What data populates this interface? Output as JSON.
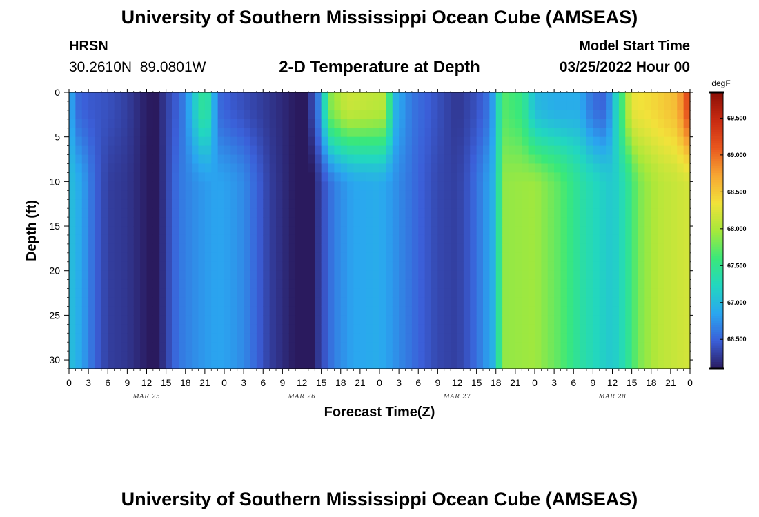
{
  "header": {
    "title": "University of Southern Mississippi Ocean Cube (AMSEAS)",
    "station": "HRSN",
    "coords": "30.2610N  89.0801W",
    "subtitle": "2-D Temperature at Depth",
    "start_label": "Model Start Time",
    "start_value": "03/25/2022 Hour 00"
  },
  "footer": {
    "title": "University of Southern Mississippi Ocean Cube (AMSEAS)"
  },
  "chart_data": {
    "type": "heatmap",
    "title": "2-D Temperature at Depth",
    "xlabel": "Forecast Time(Z)",
    "ylabel": "Depth (ft)",
    "x_tick_labels": [
      "0",
      "3",
      "6",
      "9",
      "12",
      "15",
      "18",
      "21",
      "0",
      "3",
      "6",
      "9",
      "12",
      "15",
      "18",
      "21",
      "0",
      "3",
      "6",
      "9",
      "12",
      "15",
      "18",
      "21",
      "0",
      "3",
      "6",
      "9",
      "12",
      "15",
      "18",
      "21",
      "0"
    ],
    "date_labels": [
      {
        "label": "MAR 25",
        "hour": 12
      },
      {
        "label": "MAR 26",
        "hour": 36
      },
      {
        "label": "MAR 27",
        "hour": 60
      },
      {
        "label": "MAR 28",
        "hour": 84
      }
    ],
    "xlim_hours": [
      0,
      96
    ],
    "y_tick_labels": [
      "0",
      "5",
      "10",
      "15",
      "20",
      "25",
      "30"
    ],
    "ylim_ft": [
      0,
      31
    ],
    "colorbar": {
      "unit": "degF",
      "tick_labels": [
        "66.500",
        "67.000",
        "67.500",
        "68.000",
        "68.500",
        "69.000",
        "69.500"
      ],
      "range": [
        66.1,
        69.85
      ],
      "colors": [
        "#2a1a5e",
        "#3b5fd8",
        "#2aa6f0",
        "#22d7c0",
        "#3ae87a",
        "#a8e83a",
        "#f2e23a",
        "#f7a533",
        "#e8561e",
        "#c82a12",
        "#8a0e05"
      ]
    },
    "surface_temp_degF": [
      {
        "hour": 0,
        "temp": 67.05
      },
      {
        "hour": 1,
        "temp": 66.55
      },
      {
        "hour": 3,
        "temp": 66.45
      },
      {
        "hour": 6,
        "temp": 66.4
      },
      {
        "hour": 9,
        "temp": 66.3
      },
      {
        "hour": 12,
        "temp": 66.12
      },
      {
        "hour": 13.5,
        "temp": 66.08
      },
      {
        "hour": 15,
        "temp": 66.3
      },
      {
        "hour": 17,
        "temp": 66.5
      },
      {
        "hour": 18,
        "temp": 66.7
      },
      {
        "hour": 20,
        "temp": 67.3
      },
      {
        "hour": 21,
        "temp": 67.5
      },
      {
        "hour": 22,
        "temp": 67.2
      },
      {
        "hour": 23,
        "temp": 66.55
      },
      {
        "hour": 25,
        "temp": 66.45
      },
      {
        "hour": 28,
        "temp": 66.35
      },
      {
        "hour": 31,
        "temp": 66.25
      },
      {
        "hour": 34,
        "temp": 66.15
      },
      {
        "hour": 36,
        "temp": 66.05
      },
      {
        "hour": 37,
        "temp": 66.15
      },
      {
        "hour": 39,
        "temp": 66.8
      },
      {
        "hour": 40,
        "temp": 67.8
      },
      {
        "hour": 43,
        "temp": 68.15
      },
      {
        "hour": 49,
        "temp": 68.05
      },
      {
        "hour": 50,
        "temp": 67.0
      },
      {
        "hour": 53,
        "temp": 66.6
      },
      {
        "hour": 57,
        "temp": 66.4
      },
      {
        "hour": 60,
        "temp": 66.25
      },
      {
        "hour": 63,
        "temp": 66.4
      },
      {
        "hour": 65,
        "temp": 66.6
      },
      {
        "hour": 66,
        "temp": 67.0
      },
      {
        "hour": 67,
        "temp": 67.7
      },
      {
        "hour": 70,
        "temp": 67.55
      },
      {
        "hour": 72,
        "temp": 67.0
      },
      {
        "hour": 75,
        "temp": 66.9
      },
      {
        "hour": 79,
        "temp": 66.9
      },
      {
        "hour": 81,
        "temp": 66.55
      },
      {
        "hour": 83,
        "temp": 66.5
      },
      {
        "hour": 87,
        "temp": 68.3
      },
      {
        "hour": 90,
        "temp": 68.4
      },
      {
        "hour": 94,
        "temp": 68.6
      },
      {
        "hour": 96,
        "temp": 69.3
      }
    ],
    "bottom_temp_degF": [
      {
        "hour": 0,
        "temp": 67.05
      },
      {
        "hour": 2,
        "temp": 66.85
      },
      {
        "hour": 4,
        "temp": 66.5
      },
      {
        "hour": 6,
        "temp": 66.3
      },
      {
        "hour": 9,
        "temp": 66.25
      },
      {
        "hour": 12,
        "temp": 66.12
      },
      {
        "hour": 13.5,
        "temp": 66.05
      },
      {
        "hour": 15,
        "temp": 66.3
      },
      {
        "hour": 17,
        "temp": 66.6
      },
      {
        "hour": 20,
        "temp": 66.75
      },
      {
        "hour": 23,
        "temp": 66.85
      },
      {
        "hour": 25,
        "temp": 66.8
      },
      {
        "hour": 27,
        "temp": 66.7
      },
      {
        "hour": 29,
        "temp": 66.5
      },
      {
        "hour": 31,
        "temp": 66.3
      },
      {
        "hour": 34,
        "temp": 66.15
      },
      {
        "hour": 36,
        "temp": 66.05
      },
      {
        "hour": 37,
        "temp": 66.0
      },
      {
        "hour": 39,
        "temp": 66.35
      },
      {
        "hour": 41,
        "temp": 66.65
      },
      {
        "hour": 44,
        "temp": 66.85
      },
      {
        "hour": 48,
        "temp": 66.9
      },
      {
        "hour": 51,
        "temp": 66.7
      },
      {
        "hour": 54,
        "temp": 66.5
      },
      {
        "hour": 57,
        "temp": 66.35
      },
      {
        "hour": 60,
        "temp": 66.3
      },
      {
        "hour": 62,
        "temp": 66.45
      },
      {
        "hour": 64,
        "temp": 66.7
      },
      {
        "hour": 66,
        "temp": 67.0
      },
      {
        "hour": 67,
        "temp": 67.9
      },
      {
        "hour": 72,
        "temp": 67.95
      },
      {
        "hour": 76,
        "temp": 67.7
      },
      {
        "hour": 79,
        "temp": 67.4
      },
      {
        "hour": 82,
        "temp": 67.2
      },
      {
        "hour": 84,
        "temp": 67.1
      },
      {
        "hour": 86,
        "temp": 67.35
      },
      {
        "hour": 88,
        "temp": 67.8
      },
      {
        "hour": 91,
        "temp": 68.05
      },
      {
        "hour": 96,
        "temp": 68.2
      }
    ]
  }
}
